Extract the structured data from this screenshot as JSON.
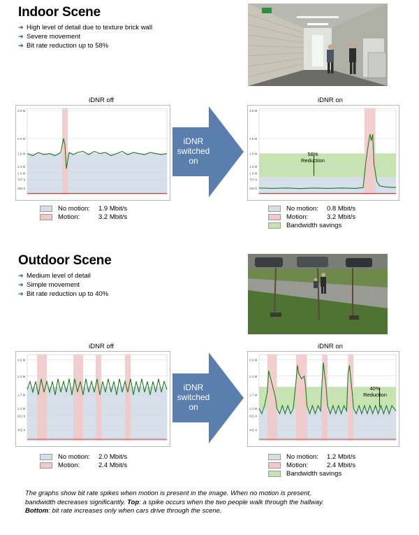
{
  "indoor": {
    "title": "Indoor Scene",
    "bullets": [
      "High level of detail due to texture brick wall",
      "Severe movement",
      "Bit rate reduction up to 58%"
    ],
    "arrow_lines": [
      "iDNR",
      "switched",
      "on"
    ],
    "off_chart": {
      "title": "iDNR off",
      "legend": [
        {
          "label": "No motion:",
          "value": "1.9 Mbit/s",
          "color": "#d6dfea"
        },
        {
          "label": "Motion:",
          "value": "3.2 Mbit/s",
          "color": "#f2c9c9"
        }
      ]
    },
    "on_chart": {
      "title": "iDNR on",
      "annotation_lines": [
        "58%",
        "Reduction"
      ],
      "legend": [
        {
          "label": "No motion:",
          "value": "0.8 Mbit/s",
          "color": "#d6dfea"
        },
        {
          "label": "Motion:",
          "value": "3.2 Mbit/s",
          "color": "#f2c9c9"
        },
        {
          "label": "Bandwidth savings",
          "value": "",
          "color": "#c6e3b1"
        }
      ]
    }
  },
  "outdoor": {
    "title": "Outdoor Scene",
    "bullets": [
      "Medium level of detail",
      "Simple movement",
      "Bit rate reduction up to 40%"
    ],
    "arrow_lines": [
      "iDNR",
      "switched",
      "on"
    ],
    "off_chart": {
      "title": "iDNR off",
      "legend": [
        {
          "label": "No motion:",
          "value": "2.0 Mbit/s",
          "color": "#d6dfea"
        },
        {
          "label": "Motion:",
          "value": "2.4 Mbit/s",
          "color": "#f2c9c9"
        }
      ]
    },
    "on_chart": {
      "title": "iDNR on",
      "annotation_lines": [
        "40%",
        "Reduction"
      ],
      "legend": [
        {
          "label": "No motion:",
          "value": "1.2 Mbit/s",
          "color": "#d6dfea"
        },
        {
          "label": "Motion:",
          "value": "2.4 Mbit/s",
          "color": "#f2c9c9"
        },
        {
          "label": "Bandwidth savings",
          "value": "",
          "color": "#c6e3b1"
        }
      ]
    }
  },
  "caption": {
    "line1": "The graphs show bit rate spikes when motion is present in the image. When no motion is present,",
    "line2": "bandwidth decreases significantly.",
    "top_label": "Top",
    "line2b": ": a spike occurs when the two people walk through the hallway.",
    "bottom_label": "Bottom",
    "line3": ": bit rate increases only when cars drive through the scene."
  },
  "colors": {
    "no_motion_fill": "#d6dfea",
    "motion_fill": "#f2c9c9",
    "savings_fill": "#c6e3b1",
    "line_green": "#1f7a1f",
    "line_red": "#c0392b",
    "arrow_blue": "#5a7fae"
  },
  "chart_data": [
    {
      "id": "indoor-off",
      "type": "line",
      "title": "iDNR off",
      "ytick_labels": [
        "3.9 M",
        "2.6 M",
        "1.9 M",
        "1.3 M",
        "1.0 M",
        "707 k",
        "293 k"
      ],
      "ytick_values": [
        3.9,
        2.6,
        1.9,
        1.3,
        1.0,
        0.707,
        0.293
      ],
      "ylim": [
        0,
        4.0
      ],
      "xlim": [
        0,
        100
      ],
      "no_motion_level": 1.9,
      "motion_bands": [
        [
          25,
          29
        ]
      ],
      "series": [
        {
          "values": [
            [
              0,
              1.9
            ],
            [
              4,
              1.8
            ],
            [
              8,
              1.95
            ],
            [
              12,
              1.85
            ],
            [
              16,
              1.9
            ],
            [
              20,
              1.8
            ],
            [
              24,
              1.95
            ],
            [
              26,
              2.6
            ],
            [
              27,
              2.3
            ],
            [
              28,
              1.2
            ],
            [
              30,
              1.95
            ],
            [
              33,
              1.85
            ],
            [
              36,
              1.95
            ],
            [
              40,
              2.0
            ],
            [
              44,
              1.85
            ],
            [
              48,
              2.0
            ],
            [
              52,
              1.9
            ],
            [
              56,
              1.95
            ],
            [
              60,
              1.8
            ],
            [
              64,
              1.9
            ],
            [
              68,
              2.0
            ],
            [
              72,
              1.85
            ],
            [
              76,
              1.95
            ],
            [
              80,
              1.9
            ],
            [
              84,
              1.85
            ],
            [
              88,
              1.95
            ],
            [
              92,
              1.9
            ],
            [
              96,
              1.85
            ],
            [
              100,
              1.9
            ]
          ]
        },
        {
          "values": [
            [
              0,
              0.05
            ],
            [
              100,
              0.05
            ]
          ]
        }
      ]
    },
    {
      "id": "indoor-on",
      "type": "line",
      "title": "iDNR on",
      "ytick_labels": [
        "3.9 M",
        "2.6 M",
        "1.9 M",
        "1.3 M",
        "1.0 M",
        "707 k",
        "293 k"
      ],
      "ytick_values": [
        3.9,
        2.6,
        1.9,
        1.3,
        1.0,
        0.707,
        0.293
      ],
      "ylim": [
        0,
        4.0
      ],
      "xlim": [
        0,
        100
      ],
      "no_motion_level": 0.8,
      "savings_range": [
        0.8,
        1.9
      ],
      "motion_bands": [
        [
          77,
          85
        ]
      ],
      "series": [
        {
          "values": [
            [
              0,
              0.3
            ],
            [
              10,
              0.28
            ],
            [
              20,
              0.3
            ],
            [
              30,
              0.27
            ],
            [
              40,
              0.3
            ],
            [
              50,
              0.28
            ],
            [
              60,
              0.3
            ],
            [
              70,
              0.28
            ],
            [
              76,
              0.32
            ],
            [
              78,
              1.5
            ],
            [
              80,
              2.4
            ],
            [
              81,
              2.8
            ],
            [
              82,
              2.5
            ],
            [
              83,
              2.8
            ],
            [
              84,
              1.4
            ],
            [
              86,
              0.6
            ],
            [
              88,
              0.4
            ],
            [
              92,
              0.35
            ],
            [
              100,
              0.32
            ]
          ]
        },
        {
          "values": [
            [
              0,
              0.05
            ],
            [
              100,
              0.05
            ]
          ]
        }
      ]
    },
    {
      "id": "outdoor-off",
      "type": "line",
      "title": "iDNR off",
      "ytick_labels": [
        "3.0 M",
        "2.4 M",
        "1.7 M",
        "1.2 M",
        "921 k",
        "402 k"
      ],
      "ytick_values": [
        3.0,
        2.4,
        1.7,
        1.2,
        0.921,
        0.402
      ],
      "ylim": [
        0,
        3.2
      ],
      "xlim": [
        0,
        100
      ],
      "no_motion_level": 2.0,
      "motion_bands": [
        [
          7,
          14
        ],
        [
          33,
          40
        ],
        [
          49,
          53
        ],
        [
          70,
          74
        ]
      ],
      "series": [
        {
          "values": [
            [
              0,
              1.9
            ],
            [
              2,
              2.2
            ],
            [
              4,
              1.8
            ],
            [
              6,
              2.2
            ],
            [
              8,
              1.7
            ],
            [
              10,
              2.3
            ],
            [
              12,
              1.8
            ],
            [
              14,
              2.2
            ],
            [
              16,
              1.8
            ],
            [
              18,
              2.2
            ],
            [
              20,
              1.7
            ],
            [
              22,
              2.3
            ],
            [
              24,
              1.8
            ],
            [
              26,
              2.2
            ],
            [
              28,
              1.8
            ],
            [
              30,
              2.3
            ],
            [
              32,
              1.7
            ],
            [
              34,
              2.3
            ],
            [
              36,
              1.8
            ],
            [
              38,
              2.2
            ],
            [
              40,
              1.7
            ],
            [
              42,
              2.3
            ],
            [
              44,
              1.8
            ],
            [
              46,
              2.2
            ],
            [
              48,
              1.8
            ],
            [
              50,
              2.3
            ],
            [
              52,
              1.7
            ],
            [
              54,
              2.2
            ],
            [
              56,
              1.8
            ],
            [
              58,
              2.3
            ],
            [
              60,
              1.8
            ],
            [
              62,
              2.2
            ],
            [
              64,
              1.7
            ],
            [
              66,
              2.3
            ],
            [
              68,
              1.8
            ],
            [
              70,
              2.2
            ],
            [
              72,
              1.8
            ],
            [
              74,
              2.3
            ],
            [
              76,
              1.7
            ],
            [
              78,
              2.2
            ],
            [
              80,
              1.8
            ],
            [
              82,
              2.3
            ],
            [
              84,
              1.8
            ],
            [
              86,
              2.2
            ],
            [
              88,
              1.7
            ],
            [
              90,
              2.2
            ],
            [
              92,
              1.8
            ],
            [
              94,
              2.3
            ],
            [
              96,
              1.8
            ],
            [
              98,
              2.2
            ],
            [
              100,
              1.9
            ]
          ]
        },
        {
          "values": [
            [
              0,
              0.05
            ],
            [
              100,
              0.05
            ]
          ]
        }
      ]
    },
    {
      "id": "outdoor-on",
      "type": "line",
      "title": "iDNR on",
      "ytick_labels": [
        "3.0 M",
        "2.4 M",
        "1.7 M",
        "1.2 M",
        "921 k",
        "402 k"
      ],
      "ytick_values": [
        3.0,
        2.4,
        1.7,
        1.2,
        0.921,
        0.402
      ],
      "ylim": [
        0,
        3.2
      ],
      "xlim": [
        0,
        100
      ],
      "no_motion_level": 1.2,
      "savings_range": [
        1.2,
        2.0
      ],
      "motion_bands": [
        [
          6,
          13
        ],
        [
          27,
          35
        ],
        [
          46,
          50
        ],
        [
          65,
          69
        ]
      ],
      "series": [
        {
          "values": [
            [
              0,
              1.2
            ],
            [
              2,
              1.0
            ],
            [
              4,
              1.3
            ],
            [
              6,
              1.8
            ],
            [
              7,
              2.6
            ],
            [
              8,
              2.4
            ],
            [
              10,
              2.0
            ],
            [
              12,
              1.6
            ],
            [
              13,
              1.2
            ],
            [
              15,
              1.0
            ],
            [
              17,
              1.3
            ],
            [
              19,
              1.0
            ],
            [
              21,
              1.3
            ],
            [
              23,
              1.0
            ],
            [
              25,
              1.2
            ],
            [
              27,
              2.2
            ],
            [
              28,
              2.8
            ],
            [
              29,
              2.5
            ],
            [
              31,
              2.3
            ],
            [
              33,
              2.4
            ],
            [
              34,
              2.0
            ],
            [
              35,
              1.3
            ],
            [
              37,
              1.0
            ],
            [
              39,
              1.3
            ],
            [
              41,
              1.0
            ],
            [
              43,
              1.3
            ],
            [
              45,
              1.1
            ],
            [
              46,
              2.2
            ],
            [
              47,
              2.9
            ],
            [
              48,
              2.4
            ],
            [
              49,
              2.0
            ],
            [
              50,
              1.3
            ],
            [
              52,
              1.0
            ],
            [
              54,
              1.3
            ],
            [
              56,
              1.0
            ],
            [
              58,
              1.3
            ],
            [
              60,
              1.0
            ],
            [
              62,
              1.3
            ],
            [
              64,
              1.1
            ],
            [
              65,
              2.5
            ],
            [
              66,
              2.8
            ],
            [
              67,
              2.3
            ],
            [
              68,
              1.8
            ],
            [
              69,
              1.2
            ],
            [
              71,
              1.0
            ],
            [
              73,
              1.3
            ],
            [
              75,
              1.0
            ],
            [
              77,
              1.3
            ],
            [
              79,
              1.0
            ],
            [
              81,
              1.3
            ],
            [
              83,
              1.0
            ],
            [
              85,
              1.3
            ],
            [
              87,
              1.0
            ],
            [
              89,
              1.3
            ],
            [
              91,
              1.0
            ],
            [
              93,
              1.3
            ],
            [
              95,
              1.0
            ],
            [
              97,
              1.3
            ],
            [
              100,
              1.1
            ]
          ]
        },
        {
          "values": [
            [
              0,
              0.05
            ],
            [
              100,
              0.05
            ]
          ]
        }
      ]
    }
  ]
}
